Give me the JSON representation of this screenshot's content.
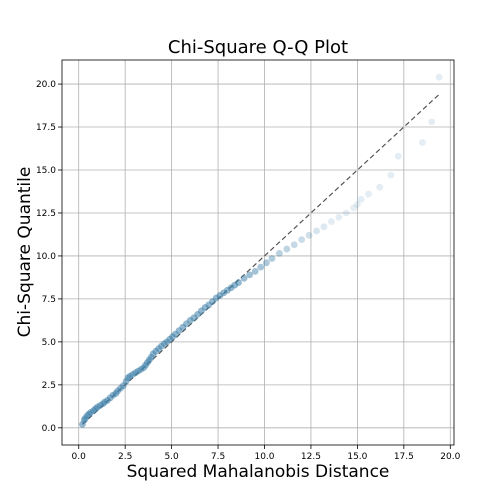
{
  "chart_data": {
    "type": "scatter",
    "title": "Chi-Square Q-Q Plot",
    "xlabel": "Squared Mahalanobis Distance",
    "ylabel": "Chi-Square Quantile",
    "xlim": [
      -0.9,
      20.2
    ],
    "ylim": [
      -1.0,
      21.4
    ],
    "xticks": [
      "0.0",
      "2.5",
      "5.0",
      "7.5",
      "10.0",
      "12.5",
      "15.0",
      "17.5",
      "20.0"
    ],
    "yticks": [
      "0.0",
      "2.5",
      "5.0",
      "7.5",
      "10.0",
      "12.5",
      "15.0",
      "17.5",
      "20.0"
    ],
    "grid": true,
    "point_color": "#3b7ea8",
    "reference_line": {
      "style": "dashed",
      "color": "#555555",
      "x": [
        0.2,
        19.4
      ],
      "y": [
        0.2,
        19.4
      ]
    },
    "series": [
      {
        "x": [
          0.2,
          0.3,
          0.35,
          0.45,
          0.55,
          0.65,
          0.8,
          0.9,
          1.0,
          1.15,
          1.3,
          1.4,
          1.55,
          1.7,
          1.85,
          2.0,
          2.1,
          2.25,
          2.4,
          2.55,
          2.65,
          2.75,
          2.9,
          3.05,
          3.2,
          3.35,
          3.5,
          3.6,
          3.7,
          3.8,
          3.9,
          4.0,
          4.15,
          4.3,
          4.45,
          4.6,
          4.75,
          4.9,
          5.05,
          5.2,
          5.4,
          5.6,
          5.8,
          6.0,
          6.2,
          6.4,
          6.6,
          6.8,
          7.0,
          7.2,
          7.4,
          7.6,
          7.8,
          8.0,
          8.2,
          8.4,
          8.6,
          8.9,
          9.2,
          9.5,
          9.8,
          10.1,
          10.4,
          10.8,
          11.2,
          11.6,
          12.0,
          12.4,
          12.8,
          13.2,
          13.6,
          14.0,
          14.4,
          14.8,
          15.0,
          15.2,
          15.6,
          16.2,
          16.8,
          17.2,
          18.5,
          19.0,
          19.4
        ],
        "y": [
          0.2,
          0.45,
          0.55,
          0.7,
          0.8,
          0.9,
          1.0,
          1.1,
          1.2,
          1.3,
          1.4,
          1.5,
          1.6,
          1.75,
          1.9,
          2.0,
          2.15,
          2.3,
          2.45,
          2.7,
          2.9,
          3.0,
          3.1,
          3.2,
          3.3,
          3.4,
          3.5,
          3.65,
          3.8,
          3.95,
          4.1,
          4.3,
          4.45,
          4.6,
          4.75,
          4.9,
          5.0,
          5.15,
          5.3,
          5.45,
          5.65,
          5.85,
          6.05,
          6.25,
          6.4,
          6.6,
          6.8,
          7.0,
          7.15,
          7.35,
          7.55,
          7.7,
          7.85,
          8.0,
          8.15,
          8.3,
          8.45,
          8.7,
          8.9,
          9.1,
          9.35,
          9.6,
          9.85,
          10.15,
          10.4,
          10.65,
          10.95,
          11.2,
          11.45,
          11.7,
          12.0,
          12.25,
          12.5,
          12.8,
          13.0,
          13.3,
          13.6,
          14.0,
          14.7,
          15.8,
          16.6,
          17.8,
          20.4
        ]
      }
    ]
  }
}
